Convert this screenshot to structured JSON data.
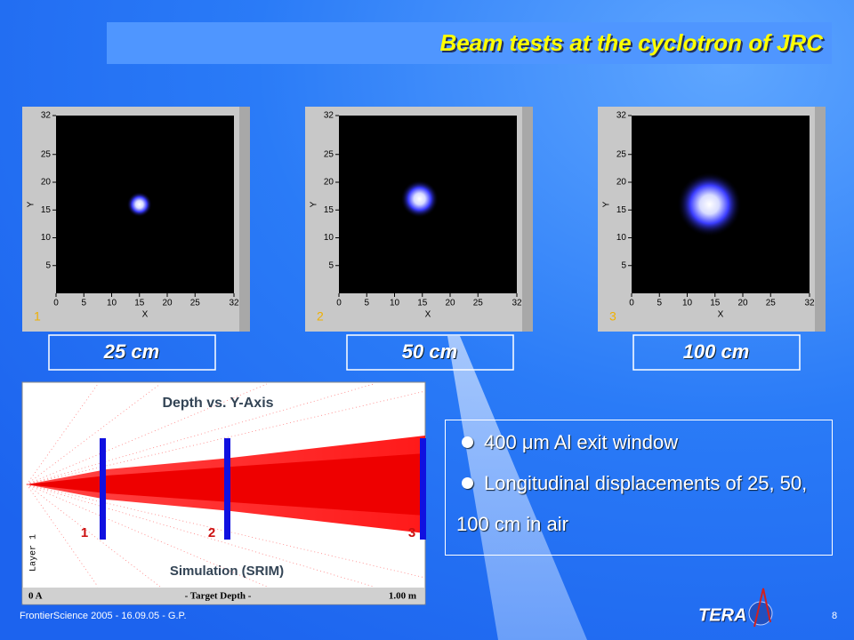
{
  "title": "Beam tests at the cyclotron of JRC",
  "panels": [
    {
      "number": "1",
      "x_label": "X",
      "y_label": "Y",
      "xticks": [
        0,
        5,
        10,
        15,
        20,
        25,
        32
      ],
      "yticks": [
        5,
        10,
        15,
        20,
        25,
        32
      ],
      "distance": "25 cm"
    },
    {
      "number": "2",
      "x_label": "X",
      "y_label": "Y",
      "xticks": [
        0,
        5,
        10,
        15,
        20,
        25,
        32
      ],
      "yticks": [
        5,
        10,
        15,
        20,
        25,
        32
      ],
      "distance": "50 cm"
    },
    {
      "number": "3",
      "x_label": "X",
      "y_label": "Y",
      "xticks": [
        0,
        5,
        10,
        15,
        20,
        25,
        32
      ],
      "yticks": [
        5,
        10,
        15,
        20,
        25,
        32
      ],
      "distance": "100 cm"
    }
  ],
  "simulation": {
    "title": "Depth vs. Y-Axis",
    "markers": [
      "1",
      "2",
      "3"
    ],
    "caption": "Simulation (SRIM)",
    "layer": "Layer 1",
    "depth_start": "0 A",
    "depth_label": "- Target Depth -",
    "depth_end": "1.00 m"
  },
  "bullets": [
    "400 μm Al exit window",
    "Longitudinal displacements of 25, 50, 100 cm in air"
  ],
  "footer": {
    "text": "FrontierScience 2005 - 16.09.05 - G.P.",
    "page": "8",
    "logo": "TERA"
  }
}
